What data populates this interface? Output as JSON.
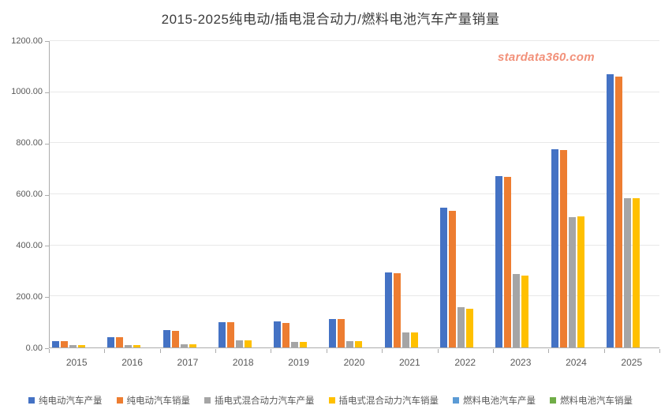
{
  "title": "2015-2025纯电动/插电混合动力/燃料电池汽车产量销量",
  "watermark": "stardata360.com",
  "colors": {
    "bev_production": "#4472C4",
    "bev_sales": "#ED7D31",
    "phev_production": "#A5A5A5",
    "phev_sales": "#FFC000",
    "fcv_production": "#5B9BD5",
    "fcv_sales": "#70AD47",
    "gridline": "#E8E8E8",
    "axis": "#ACACAC",
    "watermark_color": "#F2917A"
  },
  "chart_data": {
    "type": "bar",
    "title": "2015-2025纯电动/插电混合动力/燃料电池汽车产量销量",
    "xlabel": "",
    "ylabel": "",
    "ylim": [
      0,
      1200
    ],
    "ytick_step": 200,
    "ytick_labels": [
      "0.00",
      "200.00",
      "400.00",
      "600.00",
      "800.00",
      "1000.00",
      "1200.00"
    ],
    "grid": true,
    "legend_position": "bottom",
    "categories": [
      "2015",
      "2016",
      "2017",
      "2018",
      "2019",
      "2020",
      "2021",
      "2022",
      "2023",
      "2024",
      "2025"
    ],
    "series": [
      {
        "name": "纯电动汽车产量",
        "color": "#4472C4",
        "values": [
          25.5,
          41.7,
          66.6,
          98.6,
          102.0,
          110.5,
          294.2,
          546.7,
          670.4,
          775.0,
          1070.0
        ]
      },
      {
        "name": "纯电动汽车销量",
        "color": "#ED7D31",
        "values": [
          24.7,
          40.9,
          65.2,
          98.4,
          97.2,
          111.5,
          291.6,
          536.5,
          668.5,
          771.9,
          1060.0
        ]
      },
      {
        "name": "插电式混合动力汽车产量",
        "color": "#A5A5A5",
        "values": [
          8.8,
          8.1,
          12.8,
          28.3,
          22.0,
          26.0,
          60.1,
          158.8,
          287.7,
          511.0,
          586.0
        ]
      },
      {
        "name": "插电式混合动力汽车销量",
        "color": "#FFC000",
        "values": [
          8.4,
          7.9,
          12.4,
          27.1,
          23.2,
          25.1,
          60.3,
          151.8,
          280.4,
          514.1,
          584.0
        ]
      },
      {
        "name": "燃料电池汽车产量",
        "color": "#5B9BD5",
        "values": [
          0,
          0,
          0,
          0,
          0,
          0,
          0,
          0,
          0,
          0,
          0
        ]
      },
      {
        "name": "燃料电池汽车销量",
        "color": "#70AD47",
        "values": [
          0,
          0,
          0,
          0,
          0,
          0,
          0,
          0,
          0,
          0,
          0
        ]
      }
    ]
  }
}
